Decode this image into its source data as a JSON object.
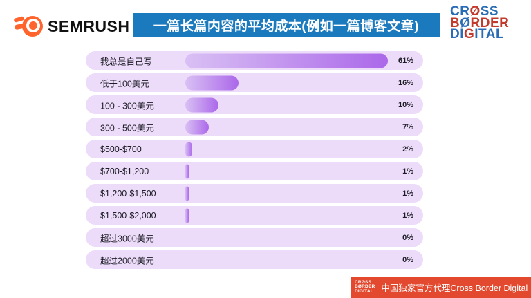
{
  "header": {
    "semrush_text": "SEMRUSH",
    "semrush_orange": "#ff642d",
    "title": "一篇长篇内容的平均成本(例如一篇博客文章)",
    "title_bg": "#1b79bd",
    "cbd_logo": {
      "blue": "#2a6db5",
      "red": "#c23a2c",
      "lines": [
        {
          "parts": [
            {
              "t": "CR",
              "c": "blue"
            },
            {
              "t": "Ø",
              "c": "red"
            },
            {
              "t": "SS",
              "c": "blue"
            }
          ]
        },
        {
          "parts": [
            {
              "t": "B",
              "c": "red"
            },
            {
              "t": "Ø",
              "c": "blue"
            },
            {
              "t": "RDER",
              "c": "red"
            }
          ]
        },
        {
          "parts": [
            {
              "t": "DI",
              "c": "blue"
            },
            {
              "t": "G",
              "c": "red"
            },
            {
              "t": "ITAL",
              "c": "blue"
            }
          ]
        }
      ]
    }
  },
  "chart_data": {
    "type": "bar",
    "orientation": "horizontal",
    "title": "一篇长篇内容的平均成本(例如一篇博客文章)",
    "categories": [
      "我总是自己写",
      "低于100美元",
      "100 - 300美元",
      "300 - 500美元",
      "$500-$700",
      "$700-$1,200",
      "$1,200-$1,500",
      "$1,500-$2,000",
      "超过3000美元",
      "超过2000美元"
    ],
    "values": [
      61,
      16,
      10,
      7,
      2,
      1,
      1,
      1,
      0,
      0
    ],
    "value_labels": [
      "61%",
      "16%",
      "10%",
      "7%",
      "2%",
      "1%",
      "1%",
      "1%",
      "0%",
      "0%"
    ],
    "unit": "%",
    "xlim": [
      0,
      61
    ],
    "grid": false,
    "legend": false,
    "row_bg": "#ecdbf9",
    "bar_color_start": "#d9c0f4",
    "bar_color_end": "#ab68e9"
  },
  "footer": {
    "bg": "#e2492e",
    "logo_lines": [
      "CRØSS",
      "BØRDER",
      "DIGITAL"
    ],
    "text": "中国独家官方代理Cross Border Digital"
  }
}
